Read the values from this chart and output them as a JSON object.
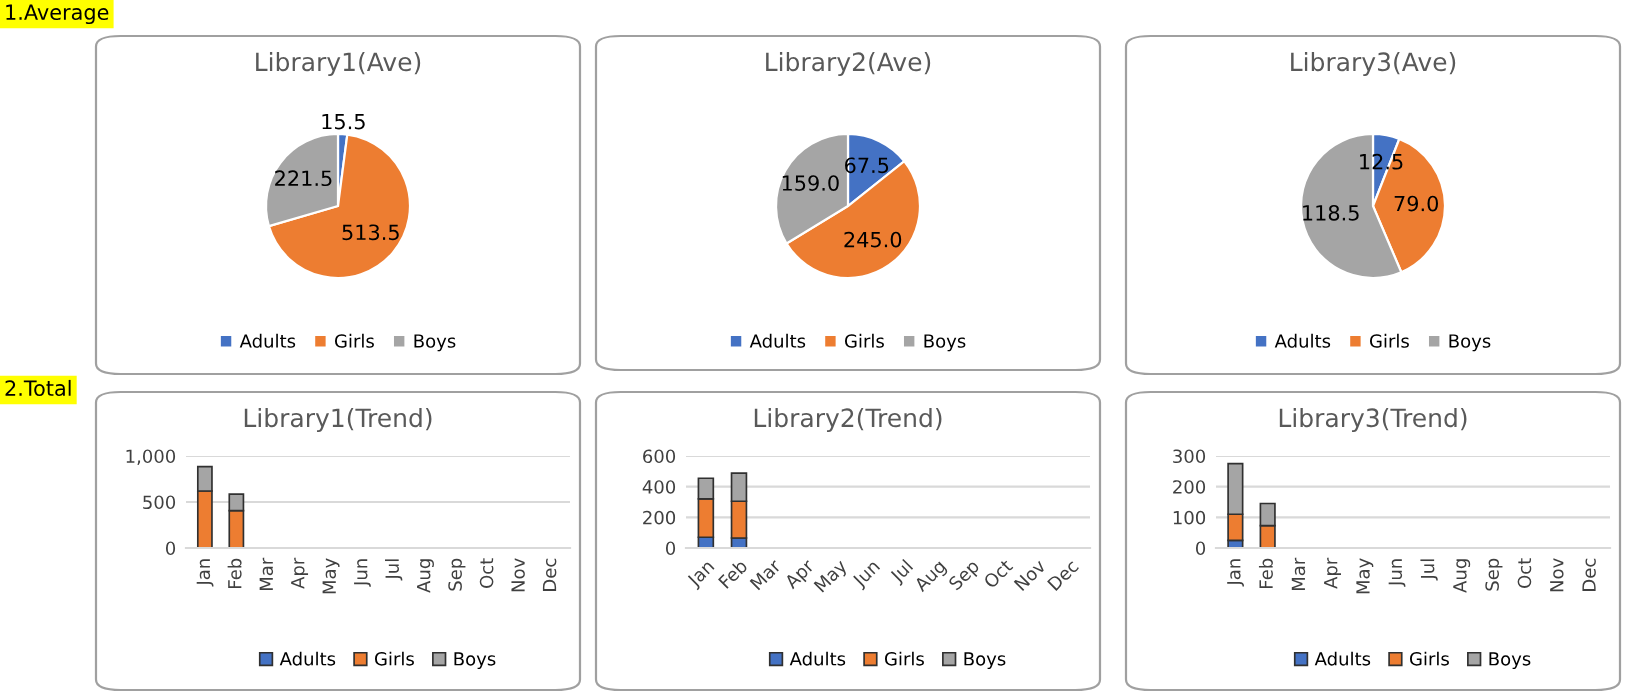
{
  "chart_data": [
    {
      "type": "pie",
      "title": "Library1(Ave)",
      "annotations": [
        "1.Average"
      ],
      "categories": [
        "Adults",
        "Girls",
        "Boys"
      ],
      "values": [
        15.5,
        513.5,
        221.5
      ],
      "value_labels": [
        "15.5",
        "513.5",
        "221.5"
      ],
      "colors": [
        "#4472c4",
        "#ed7d31",
        "#a5a5a5"
      ],
      "legend": "bottom"
    },
    {
      "type": "pie",
      "title": "Library2(Ave)",
      "categories": [
        "Adults",
        "Girls",
        "Boys"
      ],
      "values": [
        67.5,
        245.0,
        159.0
      ],
      "value_labels": [
        "67.5",
        "245.0",
        "159.0"
      ],
      "colors": [
        "#4472c4",
        "#ed7d31",
        "#a5a5a5"
      ],
      "legend": "bottom"
    },
    {
      "type": "pie",
      "title": "Library3(Ave)",
      "categories": [
        "Adults",
        "Girls",
        "Boys"
      ],
      "values": [
        12.5,
        79.0,
        118.5
      ],
      "value_labels": [
        "12.5",
        "79.0",
        "118.5"
      ],
      "colors": [
        "#4472c4",
        "#ed7d31",
        "#a5a5a5"
      ],
      "legend": "bottom"
    },
    {
      "type": "bar",
      "stacked": true,
      "title": "Library1(Trend)",
      "annotations": [
        "2.Total"
      ],
      "categories": [
        "Jan",
        "Feb",
        "Mar",
        "Apr",
        "May",
        "Jun",
        "Jul",
        "Aug",
        "Sep",
        "Oct",
        "Nov",
        "Dec"
      ],
      "series": [
        {
          "name": "Adults",
          "color": "#4472c4",
          "values": [
            null,
            null,
            null,
            null,
            null,
            null,
            null,
            null,
            null,
            null,
            null,
            null
          ]
        },
        {
          "name": "Girls",
          "color": "#ed7d31",
          "values": [
            620,
            407,
            null,
            null,
            null,
            null,
            null,
            null,
            null,
            null,
            null,
            null
          ]
        },
        {
          "name": "Boys",
          "color": "#a5a5a5",
          "values": [
            265,
            178,
            null,
            null,
            null,
            null,
            null,
            null,
            null,
            null,
            null,
            null
          ]
        }
      ],
      "ylim": [
        0,
        1000
      ],
      "yticks": [
        0,
        500,
        {
          "value": 1000,
          "label": "1,000"
        }
      ],
      "grid": "y",
      "legend": "bottom"
    },
    {
      "type": "bar",
      "stacked": true,
      "title": "Library2(Trend)",
      "categories": [
        "Jan",
        "Feb",
        "Mar",
        "Apr",
        "May",
        "Jun",
        "Jul",
        "Aug",
        "Sep",
        "Oct",
        "Nov",
        "Dec"
      ],
      "series": [
        {
          "name": "Adults",
          "color": "#4472c4",
          "values": [
            70,
            65,
            null,
            null,
            null,
            null,
            null,
            null,
            null,
            null,
            null,
            null
          ]
        },
        {
          "name": "Girls",
          "color": "#ed7d31",
          "values": [
            250,
            240,
            null,
            null,
            null,
            null,
            null,
            null,
            null,
            null,
            null,
            null
          ]
        },
        {
          "name": "Boys",
          "color": "#a5a5a5",
          "values": [
            135,
            183,
            null,
            null,
            null,
            null,
            null,
            null,
            null,
            null,
            null,
            null
          ]
        }
      ],
      "ylim": [
        0,
        600
      ],
      "yticks": [
        0,
        200,
        400,
        600
      ],
      "grid": "y",
      "legend": "bottom"
    },
    {
      "type": "bar",
      "stacked": true,
      "title": "Library3(Trend)",
      "categories": [
        "Jan",
        "Feb",
        "Mar",
        "Apr",
        "May",
        "Jun",
        "Jul",
        "Aug",
        "Sep",
        "Oct",
        "Nov",
        "Dec"
      ],
      "series": [
        {
          "name": "Adults",
          "color": "#4472c4",
          "values": [
            25,
            0,
            null,
            null,
            null,
            null,
            null,
            null,
            null,
            null,
            null,
            null
          ]
        },
        {
          "name": "Girls",
          "color": "#ed7d31",
          "values": [
            85,
            73,
            null,
            null,
            null,
            null,
            null,
            null,
            null,
            null,
            null,
            null
          ]
        },
        {
          "name": "Boys",
          "color": "#a5a5a5",
          "values": [
            165,
            72,
            null,
            null,
            null,
            null,
            null,
            null,
            null,
            null,
            null,
            null
          ]
        }
      ],
      "ylim": [
        0,
        300
      ],
      "yticks": [
        0,
        100,
        200,
        300
      ],
      "grid": "y",
      "legend": "bottom"
    }
  ]
}
